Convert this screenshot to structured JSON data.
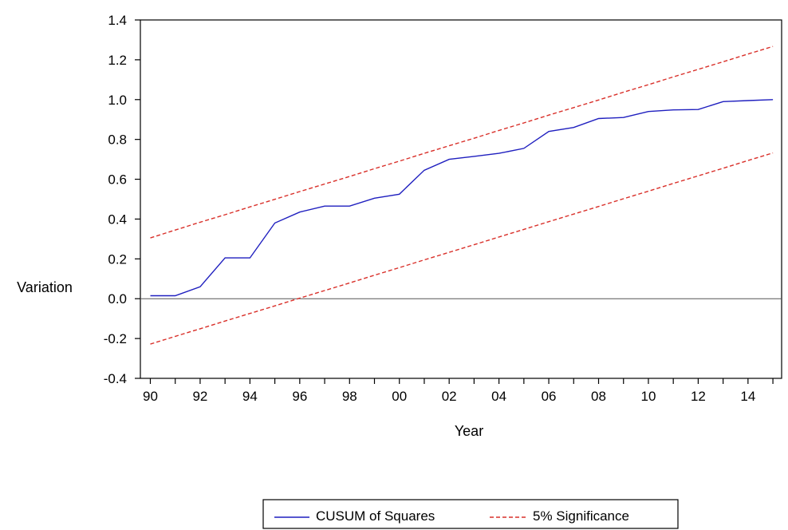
{
  "chart_data": {
    "type": "line",
    "title": "",
    "xlabel": "Year",
    "ylabel": "Variation",
    "x_tick_labels": [
      "90",
      "92",
      "94",
      "96",
      "98",
      "00",
      "02",
      "04",
      "06",
      "08",
      "10",
      "12",
      "14"
    ],
    "y_tick_labels": [
      "1.4",
      "1.2",
      "1.0",
      "0.8",
      "0.6",
      "0.4",
      "0.2",
      "0.0",
      "-0.2",
      "-0.4"
    ],
    "x": [
      1990,
      1991,
      1992,
      1993,
      1994,
      1995,
      1996,
      1997,
      1998,
      1999,
      2000,
      2001,
      2002,
      2003,
      2004,
      2005,
      2006,
      2007,
      2008,
      2009,
      2010,
      2011,
      2012,
      2013,
      2014,
      2015
    ],
    "xlim": [
      1989.6,
      2015.35
    ],
    "ylim": [
      -0.4,
      1.4
    ],
    "grid": false,
    "zero_line": true,
    "legend_position": "bottom-center",
    "series": [
      {
        "name": "CUSUM of Squares",
        "color": "#1f1fbf",
        "style": "solid",
        "values": [
          0.015,
          0.015,
          0.06,
          0.205,
          0.205,
          0.38,
          0.435,
          0.465,
          0.465,
          0.505,
          0.525,
          0.645,
          0.7,
          0.715,
          0.73,
          0.755,
          0.84,
          0.86,
          0.905,
          0.91,
          0.94,
          0.948,
          0.95,
          0.99,
          0.995,
          1.0
        ]
      },
      {
        "name": "5% Significance",
        "color": "#d9302a",
        "style": "dashed",
        "values": [
          0.305,
          0.345,
          0.384,
          0.422,
          0.461,
          0.499,
          0.538,
          0.576,
          0.614,
          0.653,
          0.691,
          0.73,
          0.768,
          0.806,
          0.845,
          0.883,
          0.922,
          0.96,
          0.998,
          1.037,
          1.075,
          1.114,
          1.152,
          1.19,
          1.229,
          1.267
        ]
      },
      {
        "name": "",
        "color": "#d9302a",
        "style": "dashed",
        "values": [
          -0.228,
          -0.189,
          -0.151,
          -0.112,
          -0.074,
          -0.036,
          0.003,
          0.041,
          0.079,
          0.118,
          0.156,
          0.195,
          0.233,
          0.271,
          0.31,
          0.348,
          0.387,
          0.425,
          0.463,
          0.502,
          0.54,
          0.579,
          0.617,
          0.655,
          0.694,
          0.732
        ]
      }
    ]
  }
}
